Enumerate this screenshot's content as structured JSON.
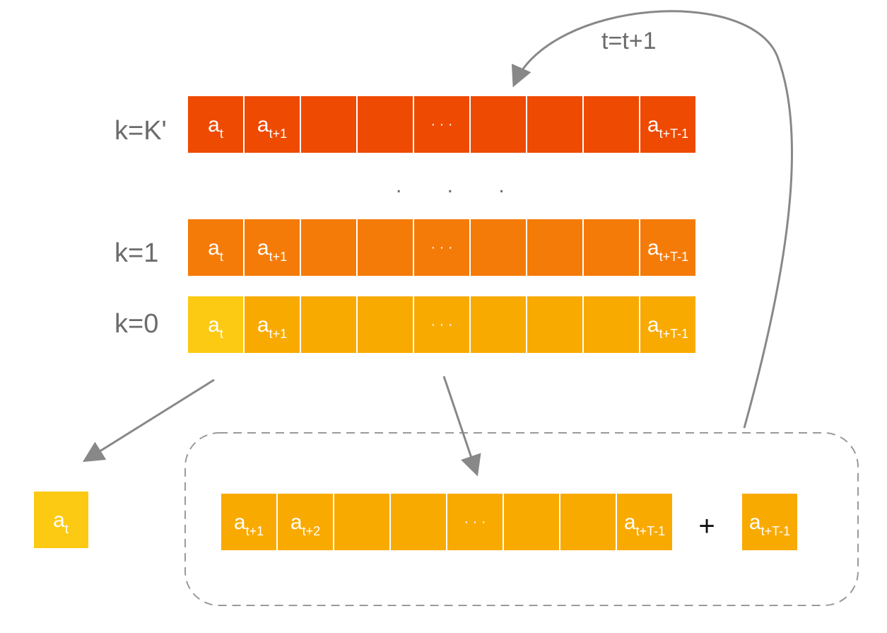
{
  "colors": {
    "row_k_prime": "#EE4A02",
    "row_k1": "#F57B08",
    "row_k0": "#F9AA00",
    "highlight": "#FCCA13",
    "arrow": "#888888",
    "label_text": "#6b6b6b",
    "cell_text": "#ffffff",
    "dashed_border": "#9a9a9a"
  },
  "top_loop_label": "t=t+1",
  "vertical_ellipsis": ". . .",
  "rows": [
    {
      "label": "k=K'",
      "color_key": "row_k_prime",
      "cells": [
        {
          "base": "a",
          "sub": "t"
        },
        {
          "base": "a",
          "sub": "t+1"
        },
        {
          "base": "",
          "sub": ""
        },
        {
          "base": "",
          "sub": ""
        },
        {
          "base": "· · ·",
          "sub": ""
        },
        {
          "base": "",
          "sub": ""
        },
        {
          "base": "",
          "sub": ""
        },
        {
          "base": "",
          "sub": ""
        },
        {
          "base": "a",
          "sub": "t+T-1"
        }
      ]
    },
    {
      "label": "k=1",
      "color_key": "row_k1",
      "cells": [
        {
          "base": "a",
          "sub": "t"
        },
        {
          "base": "a",
          "sub": "t+1"
        },
        {
          "base": "",
          "sub": ""
        },
        {
          "base": "",
          "sub": ""
        },
        {
          "base": "· · ·",
          "sub": ""
        },
        {
          "base": "",
          "sub": ""
        },
        {
          "base": "",
          "sub": ""
        },
        {
          "base": "",
          "sub": ""
        },
        {
          "base": "a",
          "sub": "t+T-1"
        }
      ]
    },
    {
      "label": "k=0",
      "color_key": "row_k0",
      "first_cell_highlight": true,
      "cells": [
        {
          "base": "a",
          "sub": "t"
        },
        {
          "base": "a",
          "sub": "t+1"
        },
        {
          "base": "",
          "sub": ""
        },
        {
          "base": "",
          "sub": ""
        },
        {
          "base": "· · ·",
          "sub": ""
        },
        {
          "base": "",
          "sub": ""
        },
        {
          "base": "",
          "sub": ""
        },
        {
          "base": "",
          "sub": ""
        },
        {
          "base": "a",
          "sub": "t+T-1"
        }
      ]
    }
  ],
  "output_cell": {
    "base": "a",
    "sub": "t"
  },
  "shifted_row": {
    "cells": [
      {
        "base": "a",
        "sub": "t+1"
      },
      {
        "base": "a",
        "sub": "t+2"
      },
      {
        "base": "",
        "sub": ""
      },
      {
        "base": "",
        "sub": ""
      },
      {
        "base": "· · ·",
        "sub": ""
      },
      {
        "base": "",
        "sub": ""
      },
      {
        "base": "",
        "sub": ""
      },
      {
        "base": "a",
        "sub": "t+T-1"
      }
    ],
    "plus_sign": "+",
    "appended_cell": {
      "base": "a",
      "sub": "t+T-1"
    }
  }
}
